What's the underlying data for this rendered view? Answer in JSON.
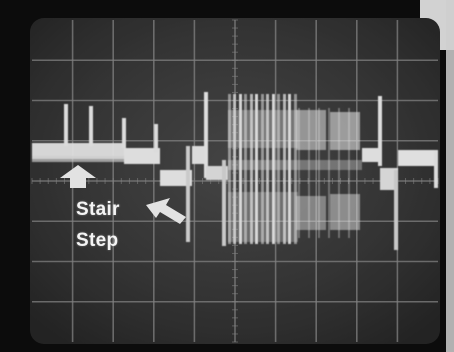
{
  "annotation": {
    "line1": "Stair",
    "line2": "Step"
  },
  "colors": {
    "screen": "#3a3a3a",
    "bezel": "#0c0c0c",
    "graticule": "#8c8c8c",
    "trace": "#f2f2f2",
    "annotation": "#f4f4f4"
  },
  "screen": {
    "grid_divisions_x": 10,
    "grid_divisions_y": 8
  }
}
